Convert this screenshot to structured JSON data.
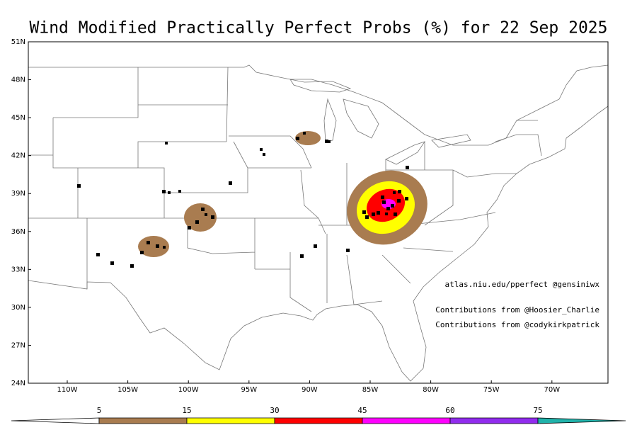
{
  "title": "Wind Modified Practically Perfect Probs (%) for 22 Sep 2025",
  "lat_labels": [
    "51N",
    "48N",
    "45N",
    "42N",
    "39N",
    "36N",
    "33N",
    "30N",
    "27N",
    "24N"
  ],
  "lon_labels": [
    "110W",
    "105W",
    "100W",
    "95W",
    "90W",
    "85W",
    "80W",
    "75W",
    "70W"
  ],
  "annotations": [
    "atlas.niu.edu/pperfect @gensiniwx",
    "Contributions from @Hoosier_Charlie",
    "Contributions from @codykirkpatrick"
  ],
  "colorbar": {
    "levels": [
      5,
      15,
      30,
      45,
      60,
      75
    ],
    "colors": [
      "#ffffff",
      "#a97c50",
      "#ffff00",
      "#ff0000",
      "#ff00ff",
      "#912cee",
      "#20b2aa"
    ]
  }
}
